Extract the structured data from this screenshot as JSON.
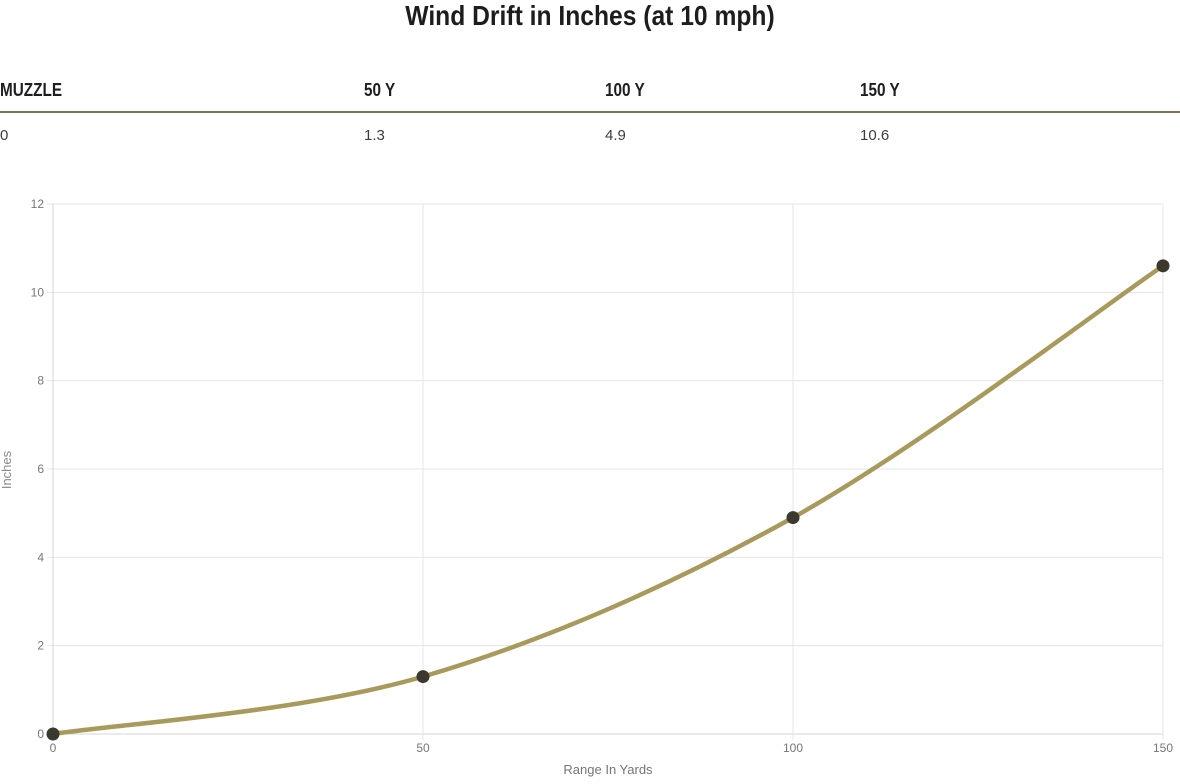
{
  "page": {
    "title": "Wind Drift in Inches (at 10 mph)"
  },
  "table": {
    "headers": [
      "MUZZLE",
      "50 Y",
      "100 Y",
      "150 Y"
    ],
    "values": [
      "0",
      "1.3",
      "4.9",
      "10.6"
    ]
  },
  "chart_data": {
    "type": "line",
    "title": "Wind Drift in Inches (at 10 mph)",
    "x": [
      0,
      50,
      100,
      150
    ],
    "series": [
      {
        "name": "Wind Drift",
        "values": [
          0,
          1.3,
          4.9,
          10.6
        ]
      }
    ],
    "xlabel": "Range In Yards",
    "ylabel": "Inches",
    "xlim": [
      0,
      150
    ],
    "ylim": [
      0,
      12
    ],
    "x_ticks": [
      0,
      50,
      100,
      150
    ],
    "y_ticks": [
      0,
      2,
      4,
      6,
      8,
      10,
      12
    ],
    "grid": true,
    "legend": "none",
    "line_color": "#a89a5c",
    "point_color": "#3b382d",
    "grid_color": "#e4e4e4",
    "axis_color": "#d4d4d4",
    "tick_label_color": "#777777",
    "axis_title_color": "#8a8a8a"
  },
  "colors": {
    "title_text": "#1d1d1d",
    "table_header_text": "#1e1e1e",
    "table_value_text": "#3d3d3d",
    "table_rule": "#7d7155",
    "background": "#ffffff"
  }
}
